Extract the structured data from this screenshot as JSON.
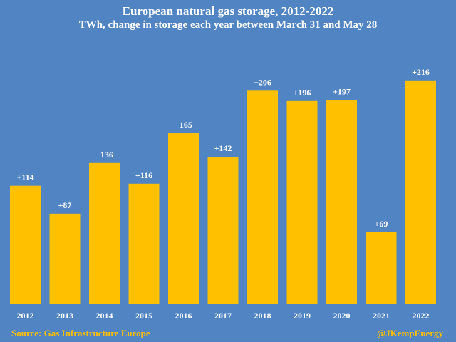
{
  "chart_data": {
    "type": "bar",
    "title": "European natural gas storage, 2012-2022",
    "subtitle": "TWh, change in storage each year between March 31 and May 28",
    "categories": [
      "2012",
      "2013",
      "2014",
      "2015",
      "2016",
      "2017",
      "2018",
      "2019",
      "2020",
      "2021",
      "2022"
    ],
    "values": [
      114,
      87,
      136,
      116,
      165,
      142,
      206,
      196,
      197,
      69,
      216
    ],
    "data_labels": [
      "+114",
      "+87",
      "+136",
      "+116",
      "+165",
      "+142",
      "+206",
      "+196",
      "+197",
      "+69",
      "+216"
    ],
    "xlabel": "",
    "ylabel": "",
    "ylim": [
      0,
      230
    ],
    "grid": false,
    "legend": "none",
    "colors": {
      "background": "#5184c2",
      "bar": "#ffc000",
      "text": "#ffffff",
      "footer_text": "#ffc000"
    }
  },
  "footer": {
    "source": "Source: Gas Infrastructure Europe",
    "credit": "@JKempEnergy"
  }
}
